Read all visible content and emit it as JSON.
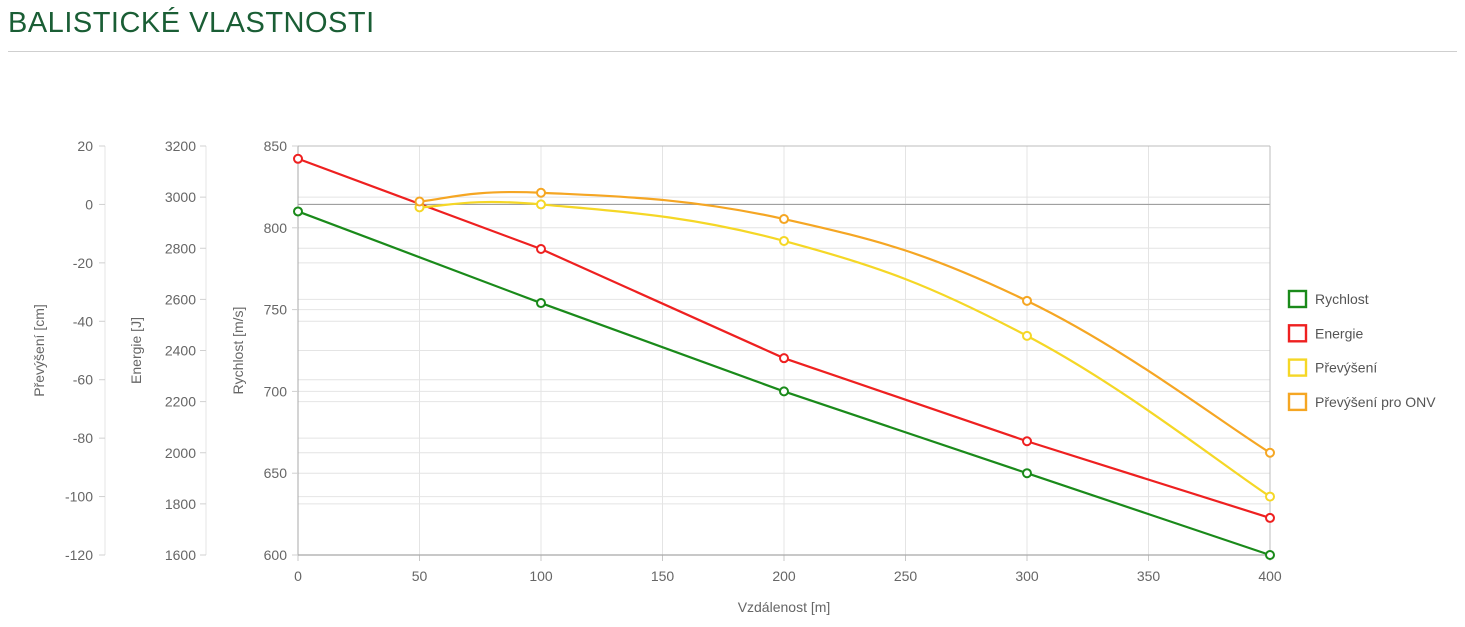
{
  "page": {
    "title": "BALISTICKÉ VLASTNOSTI"
  },
  "chart_data": {
    "type": "line",
    "x": [
      0,
      50,
      100,
      200,
      300,
      400
    ],
    "xlabel": "Vzdálenost [m]",
    "xlim": [
      0,
      400
    ],
    "xticks": [
      "0",
      "50",
      "100",
      "150",
      "200",
      "250",
      "300",
      "350",
      "400"
    ],
    "grid": true,
    "legend_position": "right",
    "axes": [
      {
        "id": "speed",
        "label": "Rychlost [m/s]",
        "range": [
          600,
          850
        ],
        "ticks": [
          "850",
          "800",
          "750",
          "700",
          "650",
          "600"
        ]
      },
      {
        "id": "energy",
        "label": "Energie [J]",
        "range": [
          1600,
          3200
        ],
        "ticks": [
          "3200",
          "3000",
          "2800",
          "2600",
          "2400",
          "2200",
          "2000",
          "1800",
          "1600"
        ]
      },
      {
        "id": "drop",
        "label": "Převýšení [cm]",
        "range": [
          -120,
          20
        ],
        "ticks": [
          "20",
          "0",
          "-20",
          "-40",
          "-60",
          "-80",
          "-100",
          "-120"
        ]
      }
    ],
    "series": [
      {
        "name": "Rychlost",
        "axis": "speed",
        "color": "#1a8a1a",
        "values": [
          810,
          null,
          754,
          700,
          650,
          600
        ]
      },
      {
        "name": "Energie",
        "axis": "energy",
        "color": "#ee2020",
        "values": [
          3150,
          null,
          2797,
          2370,
          2045,
          1745
        ]
      },
      {
        "name": "Převýšení",
        "axis": "drop",
        "color": "#f5d726",
        "values": [
          null,
          -1,
          0,
          -12.5,
          -45,
          -100
        ]
      },
      {
        "name": "Převýšení pro ONV",
        "axis": "drop",
        "color": "#f5a623",
        "values": [
          null,
          1,
          4,
          -5,
          -33,
          -85
        ]
      }
    ]
  }
}
